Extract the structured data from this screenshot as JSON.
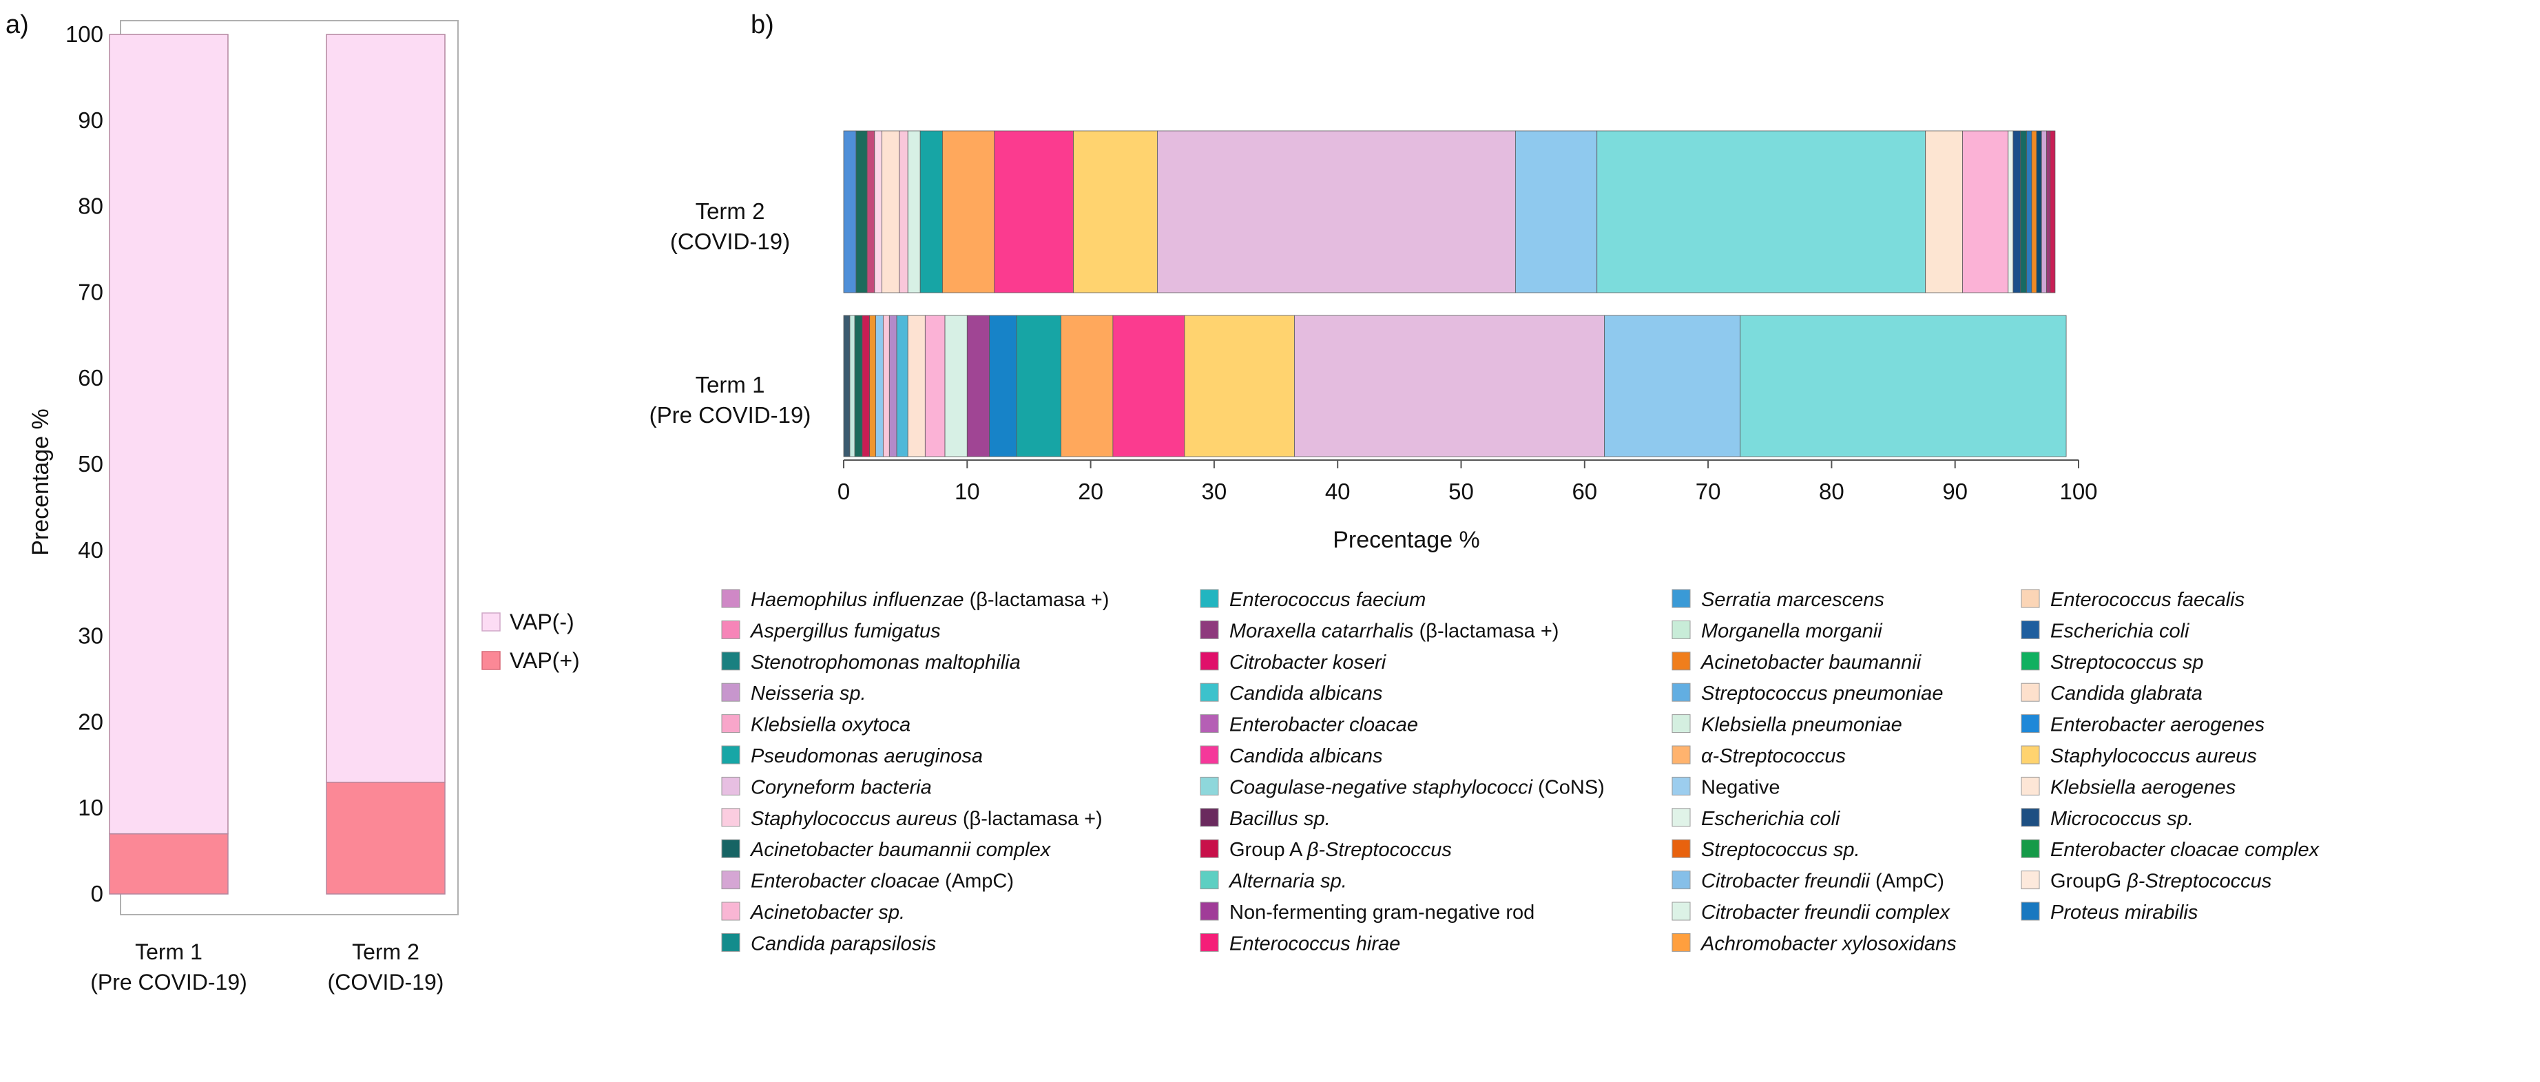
{
  "panel_a": {
    "label": "a)",
    "legend": [
      {
        "label": "VAP(-)",
        "color": "#fcdcf4"
      },
      {
        "label": "VAP(+)",
        "color": "#fb8896"
      }
    ]
  },
  "panel_b": {
    "label": "b)"
  },
  "chart_data": [
    {
      "type": "bar",
      "stacked": true,
      "categories": [
        "Term 1\n(Pre COVID-19)",
        "Term 2\n(COVID-19)"
      ],
      "category_lines": [
        [
          "Term 1",
          "(Pre COVID-19)"
        ],
        [
          "Term 2",
          "(COVID-19)"
        ]
      ],
      "series": [
        {
          "name": "VAP(+)",
          "color": "#fb8896",
          "values": [
            7,
            13
          ]
        },
        {
          "name": "VAP(-)",
          "color": "#fcdcf4",
          "values": [
            93,
            87
          ]
        }
      ],
      "xlabel": "",
      "ylabel": "Precentage %",
      "ylim": [
        0,
        100
      ],
      "yticks": [
        0,
        10,
        20,
        30,
        40,
        50,
        60,
        70,
        80,
        90,
        100
      ],
      "legend": "right"
    },
    {
      "type": "bar",
      "orientation": "horizontal",
      "stacked": true,
      "categories": [
        "Term 1\n(Pre COVID-19)",
        "Term 2\n(COVID-19)"
      ],
      "category_lines": [
        [
          "Term 1",
          "(Pre COVID-19)"
        ],
        [
          "Term 2",
          "(COVID-19)"
        ]
      ],
      "xlabel": "Precentage %",
      "xlim": [
        0,
        100
      ],
      "xticks": [
        0,
        10,
        20,
        30,
        40,
        50,
        60,
        70,
        80,
        90,
        100
      ],
      "legend": "bottom",
      "segments": {
        "Term 2": [
          {
            "color": "#4f8fd8",
            "value": 1.0
          },
          {
            "color": "#1c6b5c",
            "value": 0.9
          },
          {
            "color": "#c44a7a",
            "value": 0.6
          },
          {
            "color": "#fcd8e8",
            "value": 0.6
          },
          {
            "color": "#fde2d2",
            "value": 1.4
          },
          {
            "color": "#f9c7da",
            "value": 0.7
          },
          {
            "color": "#d7f0e5",
            "value": 1.0
          },
          {
            "color": "#17a5a5",
            "value": 1.8
          },
          {
            "color": "#ffa85c",
            "value": 4.2
          },
          {
            "color": "#fb3b8f",
            "value": 6.4
          },
          {
            "color": "#ffd36f",
            "value": 6.8
          },
          {
            "color": "#e4bcdf",
            "value": 29.0
          },
          {
            "color": "#8fc9ee",
            "value": 6.6
          },
          {
            "color": "#7cdcdc",
            "value": 26.6
          },
          {
            "color": "#fde5d2",
            "value": 3.0
          },
          {
            "color": "#fbb2d6",
            "value": 3.7
          },
          {
            "color": "#e8f5ee",
            "value": 0.4
          },
          {
            "color": "#1b4f8a",
            "value": 0.6
          },
          {
            "color": "#176a63",
            "value": 0.5
          },
          {
            "color": "#2c7abf",
            "value": 0.4
          },
          {
            "color": "#f08a23",
            "value": 0.4
          },
          {
            "color": "#0c4a70",
            "value": 0.4
          },
          {
            "color": "#cfa7d6",
            "value": 0.4
          },
          {
            "color": "#9b3a78",
            "value": 0.3
          },
          {
            "color": "#c81e54",
            "value": 0.4
          }
        ],
        "Term 1": [
          {
            "color": "#3b5a6f",
            "value": 0.5
          },
          {
            "color": "#c6e9df",
            "value": 0.4
          },
          {
            "color": "#1c6b5c",
            "value": 0.6
          },
          {
            "color": "#c81e54",
            "value": 0.6
          },
          {
            "color": "#f0962e",
            "value": 0.5
          },
          {
            "color": "#8fc9ee",
            "value": 0.6
          },
          {
            "color": "#f9c7da",
            "value": 0.5
          },
          {
            "color": "#b48ac9",
            "value": 0.6
          },
          {
            "color": "#4fb8d8",
            "value": 0.9
          },
          {
            "color": "#fde2d2",
            "value": 1.4
          },
          {
            "color": "#fbb2d6",
            "value": 1.6
          },
          {
            "color": "#d7f0e5",
            "value": 1.8
          },
          {
            "color": "#a04594",
            "value": 1.8
          },
          {
            "color": "#1783c8",
            "value": 2.2
          },
          {
            "color": "#17a5a5",
            "value": 3.6
          },
          {
            "color": "#ffa85c",
            "value": 4.2
          },
          {
            "color": "#fb3b8f",
            "value": 5.8
          },
          {
            "color": "#ffd36f",
            "value": 8.9
          },
          {
            "color": "#e4bcdf",
            "value": 25.1
          },
          {
            "color": "#8fc9ee",
            "value": 11.0
          },
          {
            "color": "#7cdcdc",
            "value": 26.4
          }
        ]
      },
      "legend_entries": [
        [
          {
            "color": "#cf88c6",
            "parts": [
              [
                "Haemophilus influenzae",
                true
              ],
              [
                " (β-lactamasa +)",
                false
              ]
            ]
          },
          {
            "color": "#f685b8",
            "parts": [
              [
                "Aspergillus fumigatus",
                true
              ]
            ]
          },
          {
            "color": "#1a8080",
            "parts": [
              [
                "Stenotrophomonas maltophilia",
                true
              ]
            ]
          },
          {
            "color": "#c796cd",
            "parts": [
              [
                "Neisseria sp.",
                true
              ]
            ]
          },
          {
            "color": "#f8a6ca",
            "parts": [
              [
                "Klebsiella oxytoca",
                true
              ]
            ]
          },
          {
            "color": "#17a6a6",
            "parts": [
              [
                "Pseudomonas aeruginosa",
                true
              ]
            ]
          },
          {
            "color": "#e7bfe2",
            "parts": [
              [
                "Coryneform bacteria",
                true
              ]
            ]
          },
          {
            "color": "#fbcde0",
            "parts": [
              [
                "Staphylococcus aureus",
                true
              ],
              [
                " (β-lactamasa +)",
                false
              ]
            ]
          },
          {
            "color": "#176464",
            "parts": [
              [
                "Acinetobacter baumannii complex",
                true
              ]
            ]
          },
          {
            "color": "#d5a6d4",
            "parts": [
              [
                "Enterobacter cloacae",
                true
              ],
              [
                " (AmpC)",
                false
              ]
            ]
          },
          {
            "color": "#f9b6d4",
            "parts": [
              [
                "Acinetobacter sp.",
                true
              ]
            ]
          },
          {
            "color": "#138c8c",
            "parts": [
              [
                "Candida parapsilosis",
                true
              ]
            ]
          }
        ],
        [
          {
            "color": "#22b5c0",
            "parts": [
              [
                "Enterococcus faecium",
                true
              ]
            ]
          },
          {
            "color": "#8e3a7d",
            "parts": [
              [
                "Moraxella catarrhalis",
                true
              ],
              [
                " (β-lactamasa +)",
                false
              ]
            ]
          },
          {
            "color": "#e0106a",
            "parts": [
              [
                "Citrobacter koseri",
                true
              ]
            ]
          },
          {
            "color": "#3cc2cc",
            "parts": [
              [
                "Candida albicans",
                true
              ]
            ]
          },
          {
            "color": "#b55fb5",
            "parts": [
              [
                "Enterobacter cloacae",
                true
              ]
            ]
          },
          {
            "color": "#f5389a",
            "parts": [
              [
                "Candida albicans",
                true
              ]
            ]
          },
          {
            "color": "#8ed7db",
            "parts": [
              [
                "Coagulase-negative staphylococci",
                true
              ],
              [
                " (CoNS)",
                false
              ]
            ]
          },
          {
            "color": "#6a2a5e",
            "parts": [
              [
                "Bacillus sp.",
                true
              ]
            ]
          },
          {
            "color": "#c8104a",
            "parts": [
              [
                "Group A ",
                false
              ],
              [
                "β-Streptococcus",
                true
              ]
            ]
          },
          {
            "color": "#5dcfc2",
            "parts": [
              [
                "Alternaria sp.",
                true
              ]
            ]
          },
          {
            "color": "#a03c98",
            "parts": [
              [
                "Non-fermenting gram-negative rod",
                false
              ]
            ]
          },
          {
            "color": "#f51e78",
            "parts": [
              [
                "Enterococcus hirae",
                true
              ]
            ]
          }
        ],
        [
          {
            "color": "#3a9ad6",
            "parts": [
              [
                "Serratia marcescens",
                true
              ]
            ]
          },
          {
            "color": "#c8ecd8",
            "parts": [
              [
                "Morganella morganii",
                true
              ]
            ]
          },
          {
            "color": "#f07e1c",
            "parts": [
              [
                "Acinetobacter baumannii",
                true
              ]
            ]
          },
          {
            "color": "#62aee2",
            "parts": [
              [
                "Streptococcus pneumoniae",
                true
              ]
            ]
          },
          {
            "color": "#d4efe0",
            "parts": [
              [
                "Klebsiella pneumoniae",
                true
              ]
            ]
          },
          {
            "color": "#ffb36e",
            "parts": [
              [
                "α-Streptococcus",
                true
              ]
            ]
          },
          {
            "color": "#9ccdee",
            "parts": [
              [
                "Negative",
                false
              ]
            ]
          },
          {
            "color": "#e0f3e8",
            "parts": [
              [
                "Escherichia coli",
                true
              ]
            ]
          },
          {
            "color": "#e8620e",
            "parts": [
              [
                "Streptococcus sp.",
                true
              ]
            ]
          },
          {
            "color": "#86bfe8",
            "parts": [
              [
                "Citrobacter freundii",
                true
              ],
              [
                " (AmpC)",
                false
              ]
            ]
          },
          {
            "color": "#dcf2e6",
            "parts": [
              [
                "Citrobacter freundii complex",
                true
              ]
            ]
          },
          {
            "color": "#ff9f3e",
            "parts": [
              [
                "Achromobacter xylosoxidans",
                true
              ]
            ]
          }
        ],
        [
          {
            "color": "#fbd5b6",
            "parts": [
              [
                "Enterococcus faecalis",
                true
              ]
            ]
          },
          {
            "color": "#1f5e9e",
            "parts": [
              [
                "Escherichia coli",
                true
              ]
            ]
          },
          {
            "color": "#10b060",
            "parts": [
              [
                "Streptococcus sp",
                true
              ]
            ]
          },
          {
            "color": "#fde0cc",
            "parts": [
              [
                "Candida glabrata",
                true
              ]
            ]
          },
          {
            "color": "#1e88d8",
            "parts": [
              [
                "Enterobacter aerogenes",
                true
              ]
            ]
          },
          {
            "color": "#ffd36f",
            "parts": [
              [
                "Staphylococcus aureus",
                true
              ]
            ]
          },
          {
            "color": "#fde6d6",
            "parts": [
              [
                "Klebsiella aerogenes",
                true
              ]
            ]
          },
          {
            "color": "#1d4f82",
            "parts": [
              [
                "Micrococcus sp.",
                true
              ]
            ]
          },
          {
            "color": "#159a48",
            "parts": [
              [
                "Enterobacter cloacae complex",
                true
              ]
            ]
          },
          {
            "color": "#fde9dc",
            "parts": [
              [
                "GroupG ",
                false
              ],
              [
                "β-Streptococcus",
                true
              ]
            ]
          },
          {
            "color": "#1878c0",
            "parts": [
              [
                "Proteus mirabilis",
                true
              ]
            ]
          }
        ]
      ]
    }
  ]
}
